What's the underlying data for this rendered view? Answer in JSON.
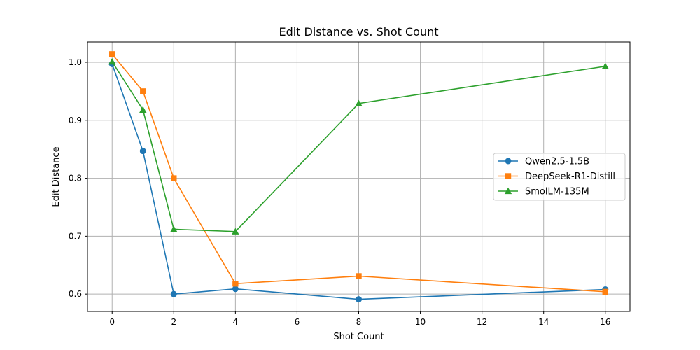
{
  "chart_data": {
    "type": "line",
    "title": "Edit Distance vs. Shot Count",
    "xlabel": "Shot Count",
    "ylabel": "Edit Distance",
    "x": [
      0,
      1,
      2,
      4,
      8,
      16
    ],
    "xlim": [
      -0.8,
      16.8
    ],
    "ylim": [
      0.57,
      1.035
    ],
    "xticks": [
      0,
      2,
      4,
      6,
      8,
      10,
      12,
      14,
      16
    ],
    "yticks": [
      0.6,
      0.7,
      0.8,
      0.9,
      1.0
    ],
    "ytick_labels": [
      "0.6",
      "0.7",
      "0.8",
      "0.9",
      "1.0"
    ],
    "grid": true,
    "legend_position": "center-right",
    "series": [
      {
        "name": "Qwen2.5-1.5B",
        "color": "#1f77b4",
        "marker": "circle",
        "values": [
          0.997,
          0.847,
          0.6,
          0.609,
          0.591,
          0.608
        ]
      },
      {
        "name": "DeepSeek-R1-Distill",
        "color": "#ff7f0e",
        "marker": "square",
        "values": [
          1.014,
          0.95,
          0.8,
          0.618,
          0.631,
          0.604
        ]
      },
      {
        "name": "SmolLM-135M",
        "color": "#2ca02c",
        "marker": "triangle",
        "values": [
          1.001,
          0.918,
          0.712,
          0.708,
          0.929,
          0.993
        ]
      }
    ]
  }
}
